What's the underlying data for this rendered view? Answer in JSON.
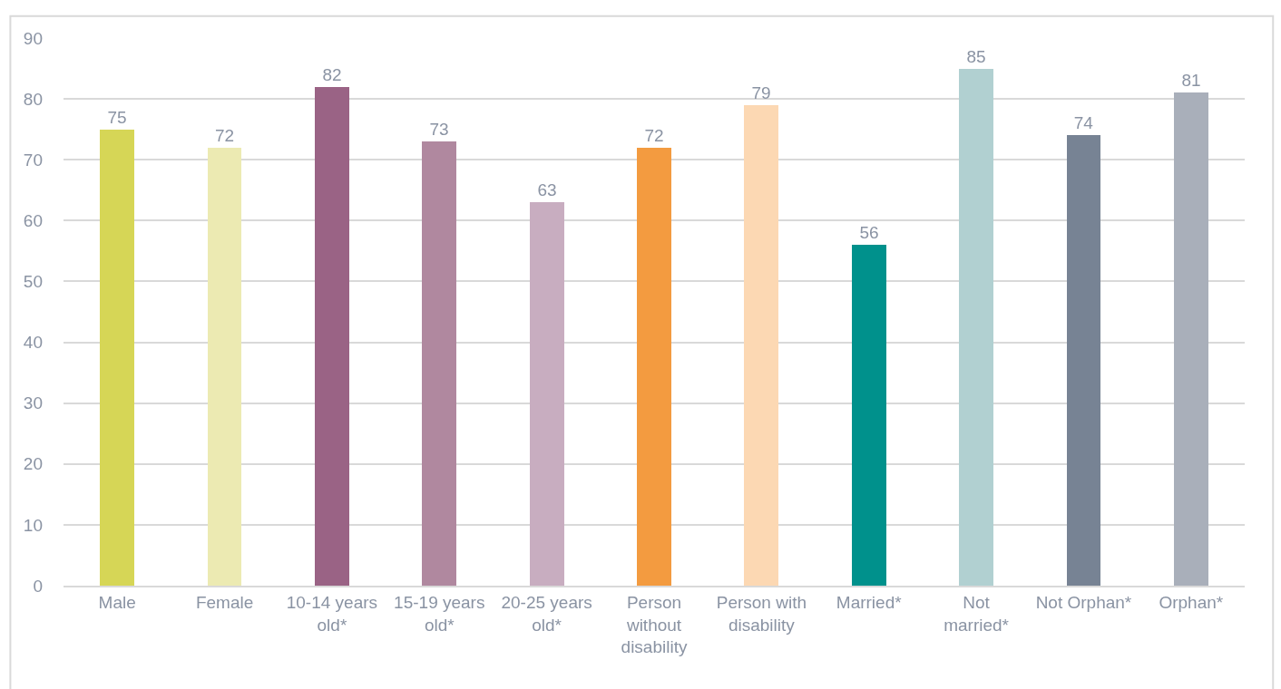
{
  "chart_data": {
    "type": "bar",
    "categories": [
      "Male",
      "Female",
      "10-14 years old*",
      "15-19 years old*",
      "20-25 years old*",
      "Person without disability",
      "Person with disability",
      "Married*",
      "Not married*",
      "Not Orphan*",
      "Orphan*"
    ],
    "values": [
      75,
      72,
      82,
      73,
      63,
      72,
      79,
      56,
      85,
      74,
      81
    ],
    "colors": [
      "#d6d656",
      "#eceab2",
      "#9a6385",
      "#b0889f",
      "#c8adc0",
      "#f39b40",
      "#fcd8b3",
      "#00918c",
      "#b1d0d1",
      "#778394",
      "#a9afba"
    ],
    "ylim": [
      0,
      90
    ],
    "yticks": [
      0,
      10,
      20,
      30,
      40,
      50,
      60,
      70,
      80,
      90
    ],
    "grid": "y",
    "data_labels": true
  }
}
